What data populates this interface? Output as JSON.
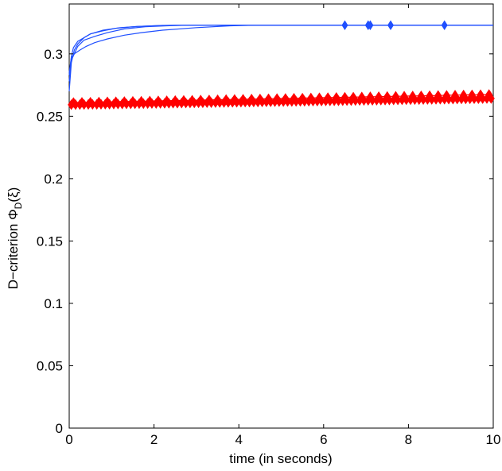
{
  "chart_data": {
    "type": "line",
    "title": "",
    "xlabel": "time (in seconds)",
    "ylabel_main": "D−criterion  Φ",
    "ylabel_sub": "D",
    "ylabel_tail": "(ξ)",
    "xlim": [
      0,
      10
    ],
    "ylim": [
      0,
      0.34
    ],
    "x_ticks": [
      0,
      2,
      4,
      6,
      8,
      10
    ],
    "x_tick_labels": [
      "0",
      "2",
      "4",
      "6",
      "8",
      "10"
    ],
    "y_ticks": [
      0,
      0.05,
      0.1,
      0.15,
      0.2,
      0.25,
      0.3
    ],
    "y_tick_labels": [
      "0",
      "0.05",
      "0.1",
      "0.15",
      "0.2",
      "0.25",
      "0.3"
    ],
    "grid": false,
    "series": [
      {
        "color": "#1f4fff",
        "marker": "diamond",
        "runs": [
          {
            "x": [
              0.0,
              0.05,
              0.12,
              0.2,
              0.35,
              0.5,
              0.8,
              1.2,
              1.6,
              2.0,
              2.5,
              3.0,
              10.0
            ],
            "y": [
              0.27,
              0.293,
              0.303,
              0.308,
              0.313,
              0.316,
              0.319,
              0.321,
              0.322,
              0.3225,
              0.323,
              0.323,
              0.323
            ]
          },
          {
            "x": [
              0.0,
              0.05,
              0.12,
              0.2,
              0.35,
              0.6,
              0.9,
              1.3,
              1.8,
              2.3,
              2.8,
              10.0
            ],
            "y": [
              0.278,
              0.295,
              0.3,
              0.306,
              0.311,
              0.314,
              0.317,
              0.32,
              0.3218,
              0.3225,
              0.323,
              0.323
            ]
          },
          {
            "x": [
              0.0,
              0.05,
              0.1,
              0.2,
              0.35,
              0.5,
              0.8,
              1.1,
              1.6,
              2.2,
              3.0,
              10.0
            ],
            "y": [
              0.283,
              0.298,
              0.305,
              0.31,
              0.313,
              0.316,
              0.3185,
              0.3205,
              0.322,
              0.3228,
              0.323,
              0.323
            ]
          },
          {
            "x": [
              0.0,
              0.05,
              0.12,
              0.25,
              0.4,
              0.6,
              0.9,
              1.3,
              1.7,
              2.2,
              3.0,
              3.8,
              4.4,
              10.0
            ],
            "y": [
              0.285,
              0.297,
              0.3,
              0.303,
              0.306,
              0.309,
              0.312,
              0.315,
              0.317,
              0.319,
              0.321,
              0.3225,
              0.323,
              0.323
            ]
          }
        ],
        "marker_x": [
          6.5,
          7.05,
          7.1,
          7.58,
          8.85
        ],
        "marker_y": 0.323
      },
      {
        "color": "#ff0000",
        "marker": "diamond",
        "x_start": 0.05,
        "x_end": 10.0,
        "x_step": 0.1,
        "y_start": 0.26,
        "y_end": 0.265,
        "y_high_offset": 0.0025
      }
    ]
  }
}
